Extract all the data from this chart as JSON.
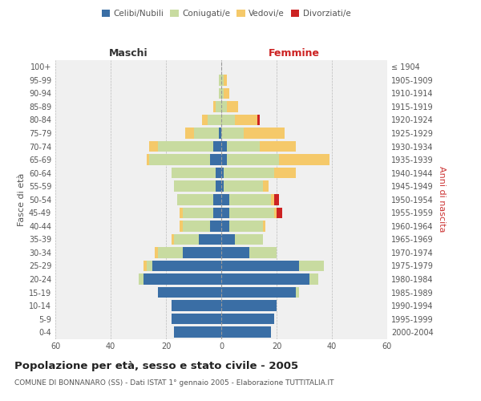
{
  "age_groups": [
    "0-4",
    "5-9",
    "10-14",
    "15-19",
    "20-24",
    "25-29",
    "30-34",
    "35-39",
    "40-44",
    "45-49",
    "50-54",
    "55-59",
    "60-64",
    "65-69",
    "70-74",
    "75-79",
    "80-84",
    "85-89",
    "90-94",
    "95-99",
    "100+"
  ],
  "birth_years": [
    "2000-2004",
    "1995-1999",
    "1990-1994",
    "1985-1989",
    "1980-1984",
    "1975-1979",
    "1970-1974",
    "1965-1969",
    "1960-1964",
    "1955-1959",
    "1950-1954",
    "1945-1949",
    "1940-1944",
    "1935-1939",
    "1930-1934",
    "1925-1929",
    "1920-1924",
    "1915-1919",
    "1910-1914",
    "1905-1909",
    "≤ 1904"
  ],
  "male": {
    "celibi": [
      17,
      18,
      18,
      23,
      28,
      25,
      14,
      8,
      4,
      3,
      3,
      2,
      2,
      4,
      3,
      1,
      0,
      0,
      0,
      0,
      0
    ],
    "coniugati": [
      0,
      0,
      0,
      0,
      2,
      2,
      9,
      9,
      10,
      11,
      13,
      15,
      16,
      22,
      20,
      9,
      5,
      2,
      1,
      1,
      0
    ],
    "vedovi": [
      0,
      0,
      0,
      0,
      0,
      1,
      1,
      1,
      1,
      1,
      0,
      0,
      0,
      1,
      3,
      3,
      2,
      1,
      0,
      0,
      0
    ],
    "divorziati": [
      0,
      0,
      0,
      0,
      0,
      0,
      0,
      0,
      0,
      0,
      0,
      0,
      0,
      0,
      0,
      0,
      0,
      0,
      0,
      0,
      0
    ]
  },
  "female": {
    "nubili": [
      18,
      19,
      20,
      27,
      32,
      28,
      10,
      5,
      3,
      3,
      3,
      1,
      1,
      2,
      2,
      0,
      0,
      0,
      0,
      0,
      0
    ],
    "coniugate": [
      0,
      0,
      0,
      1,
      3,
      9,
      10,
      10,
      12,
      16,
      15,
      14,
      18,
      19,
      12,
      8,
      5,
      2,
      1,
      1,
      0
    ],
    "vedove": [
      0,
      0,
      0,
      0,
      0,
      0,
      0,
      0,
      1,
      1,
      1,
      2,
      8,
      18,
      13,
      15,
      8,
      4,
      2,
      1,
      0
    ],
    "divorziate": [
      0,
      0,
      0,
      0,
      0,
      0,
      0,
      0,
      0,
      2,
      2,
      0,
      0,
      0,
      0,
      0,
      1,
      0,
      0,
      0,
      0
    ]
  },
  "colors": {
    "celibi_nubili": "#3a6ea5",
    "coniugati": "#c8dba0",
    "vedovi": "#f5c96a",
    "divorziati": "#cc2222"
  },
  "title": "Popolazione per età, sesso e stato civile - 2005",
  "subtitle": "COMUNE DI BONNANARO (SS) - Dati ISTAT 1° gennaio 2005 - Elaborazione TUTTITALIA.IT",
  "xlabel_left": "Maschi",
  "xlabel_right": "Femmine",
  "ylabel_left": "Fasce di età",
  "ylabel_right": "Anni di nascita",
  "xlim": 60,
  "bg_color": "#f0f0f0",
  "grid_color": "#bbbbbb"
}
